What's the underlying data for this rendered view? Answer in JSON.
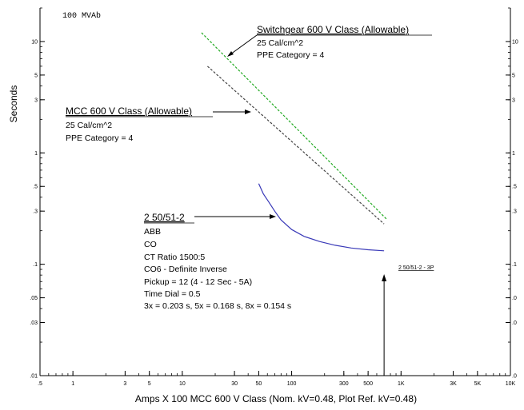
{
  "chart_data": {
    "type": "line",
    "x_scale": "log",
    "y_scale": "log",
    "xlim": [
      0.5,
      10000
    ],
    "ylim": [
      0.01,
      20
    ],
    "grid": false,
    "header_label": "100 MVAb",
    "xlabel": "Amps  X  100   MCC 600 V Class (Nom. kV=0.48, Plot Ref. kV=0.48)",
    "ylabel": "Seconds",
    "x_ticks": [
      {
        "value": 0.5,
        "label": ".5"
      },
      {
        "value": 1,
        "label": "1"
      },
      {
        "value": 3,
        "label": "3"
      },
      {
        "value": 5,
        "label": "5"
      },
      {
        "value": 10,
        "label": "10"
      },
      {
        "value": 30,
        "label": "30"
      },
      {
        "value": 50,
        "label": "50"
      },
      {
        "value": 100,
        "label": "100"
      },
      {
        "value": 300,
        "label": "300"
      },
      {
        "value": 500,
        "label": "500"
      },
      {
        "value": 1000,
        "label": "1K"
      },
      {
        "value": 3000,
        "label": "3K"
      },
      {
        "value": 5000,
        "label": "5K"
      },
      {
        "value": 10000,
        "label": "10K"
      }
    ],
    "y_ticks_left": [
      {
        "value": 10,
        "label": "10"
      },
      {
        "value": 5,
        "label": "5"
      },
      {
        "value": 3,
        "label": "3"
      },
      {
        "value": 1,
        "label": "1"
      },
      {
        "value": 0.5,
        "label": ".5"
      },
      {
        "value": 0.3,
        "label": ".3"
      },
      {
        "value": 0.1,
        "label": ".1"
      },
      {
        "value": 0.05,
        "label": ".05"
      },
      {
        "value": 0.03,
        "label": ".03"
      },
      {
        "value": 0.01,
        "label": ".01"
      }
    ],
    "y_ticks_right": [
      {
        "value": 10,
        "label": "10"
      },
      {
        "value": 5,
        "label": "5"
      },
      {
        "value": 3,
        "label": "3"
      },
      {
        "value": 1,
        "label": "1"
      },
      {
        "value": 0.5,
        "label": ".5"
      },
      {
        "value": 0.3,
        "label": ".3"
      },
      {
        "value": 0.1,
        "label": ".1"
      },
      {
        "value": 0.05,
        "label": ".0"
      },
      {
        "value": 0.03,
        "label": ".0"
      },
      {
        "value": 0.01,
        "label": ".0"
      }
    ],
    "series": [
      {
        "color": "#22aa22",
        "dash": true,
        "x": [
          15,
          750
        ],
        "y": [
          12,
          0.25
        ]
      },
      {
        "color": "#444444",
        "dash": true,
        "x": [
          17,
          700
        ],
        "y": [
          6,
          0.23
        ]
      },
      {
        "color": "#3a3ab8",
        "dash": false,
        "x": [
          50,
          55,
          62,
          70,
          80,
          100,
          130,
          180,
          250,
          350,
          500,
          700
        ],
        "y": [
          0.53,
          0.43,
          0.36,
          0.3,
          0.25,
          0.205,
          0.178,
          0.16,
          0.148,
          0.14,
          0.135,
          0.132
        ]
      }
    ],
    "annotations": [
      {
        "title": "Switchgear 600 V Class (Allowable)",
        "lines": [
          "25 Cal/cm^2",
          "PPE Category = 4"
        ]
      },
      {
        "title": "MCC 600 V Class (Allowable)",
        "lines": [
          "25 Cal/cm^2",
          "PPE Category = 4"
        ]
      },
      {
        "title": "2 50/51-2",
        "lines": [
          "ABB",
          "CO",
          "CT Ratio 1500:5",
          "CO6 - Definite Inverse",
          "Pickup = 12 (4 - 12  Sec - 5A)",
          "Time Dial = 0.5",
          "3x = 0.203 s, 5x = 0.168 s, 8x = 0.154 s"
        ]
      }
    ],
    "marker": {
      "label": "2 50/51-2 - 3P",
      "x": 700
    }
  }
}
